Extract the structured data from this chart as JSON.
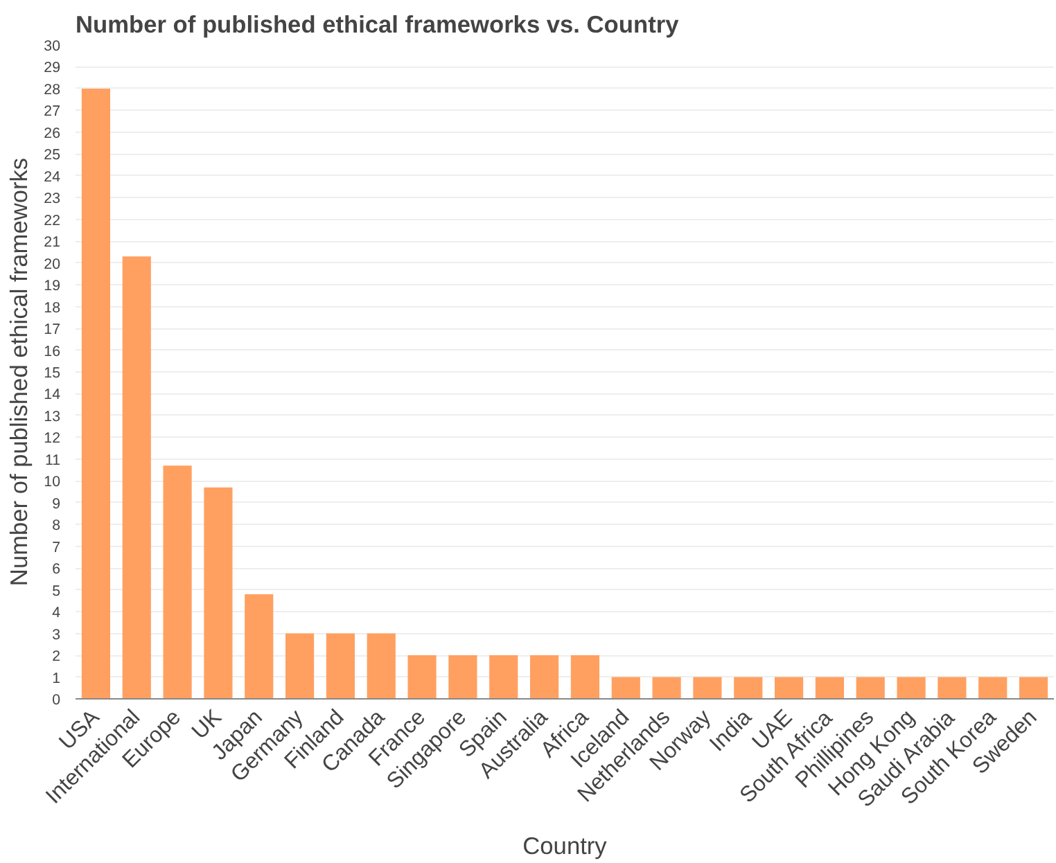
{
  "chart_data": {
    "type": "bar",
    "title": "Number of published ethical frameworks vs. Country",
    "xlabel": "Country",
    "ylabel": "Number of published ethical frameworks",
    "categories": [
      "USA",
      "International",
      "Europe",
      "UK",
      "Japan",
      "Germany",
      "Finland",
      "Canada",
      "France",
      "Singapore",
      "Spain",
      "Australia",
      "Africa",
      "Iceland",
      "Netherlands",
      "Norway",
      "India",
      "UAE",
      "South Africa",
      "Phillipines",
      "Hong Kong",
      "Saudi Arabia",
      "South Korea",
      "Sweden"
    ],
    "values": [
      28,
      20.3,
      10.7,
      9.7,
      4.8,
      3,
      3,
      3,
      2,
      2,
      2,
      2,
      2,
      1,
      1,
      1,
      1,
      1,
      1,
      1,
      1,
      1,
      1,
      1
    ],
    "color": "#ffa061",
    "ylim": [
      0,
      30
    ],
    "yticks": [
      0,
      1,
      2,
      3,
      4,
      5,
      6,
      7,
      8,
      9,
      10,
      11,
      12,
      13,
      14,
      15,
      16,
      17,
      18,
      19,
      20,
      21,
      22,
      23,
      24,
      25,
      26,
      27,
      28,
      29,
      30
    ],
    "grid": "y"
  }
}
